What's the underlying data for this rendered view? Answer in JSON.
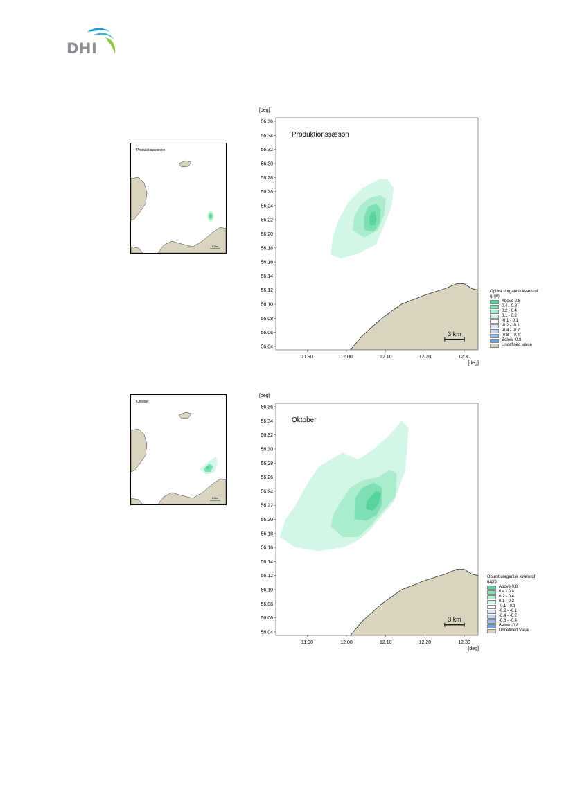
{
  "header": {
    "logo_text": "DHI",
    "logo_colors": [
      "#1a9ad6",
      "#3fb6cc",
      "#8cc63f"
    ]
  },
  "legend": {
    "title": "Opløst uorganisk kvælstof",
    "unit": "(µg/l)",
    "items": [
      {
        "label": "Above  0.8",
        "color": "#58d39c"
      },
      {
        "label": "0.4 -  0.8",
        "color": "#7ce0b4"
      },
      {
        "label": "0.2 -  0.4",
        "color": "#aaeccd"
      },
      {
        "label": "0.1 -  0.2",
        "color": "#d3f6e6"
      },
      {
        "label": "-0.1 -  0.1",
        "color": "#ffffff"
      },
      {
        "label": "-0.2 - -0.1",
        "color": "#dde7f6"
      },
      {
        "label": "-0.4 - -0.2",
        "color": "#c0d3f0"
      },
      {
        "label": "-0.8 - -0.4",
        "color": "#9cbde9"
      },
      {
        "label": "Below -0.8",
        "color": "#6ea2e1"
      },
      {
        "label": "Undefined Value",
        "color": "#d8d4bf"
      }
    ]
  },
  "chart_data": [
    {
      "type": "heatmap",
      "title": "Produktionssæson",
      "overview_title": "Produktionssæson",
      "xlabel": "[deg]",
      "ylabel": "[deg]",
      "xlim": [
        11.82,
        12.335
      ],
      "ylim": [
        56.035,
        56.365
      ],
      "xticks": [
        "11.90",
        "12.00",
        "12.10",
        "12.20",
        "12.30"
      ],
      "yticks": [
        "56.04",
        "56.06",
        "56.08",
        "56.10",
        "56.12",
        "56.14",
        "56.16",
        "56.18",
        "56.20",
        "56.22",
        "56.24",
        "56.26",
        "56.28",
        "56.30",
        "56.32",
        "56.34",
        "56.36"
      ],
      "scale_bar": "3 km",
      "overview_scale_bar": "10 km",
      "contours": [
        {
          "level": "0.1 - 0.2",
          "color": "#d3f6e6",
          "points": [
            [
              11.96,
              56.17
            ],
            [
              11.985,
              56.165
            ],
            [
              12.03,
              56.172
            ],
            [
              12.075,
              56.185
            ],
            [
              12.095,
              56.21
            ],
            [
              12.115,
              56.24
            ],
            [
              12.12,
              56.265
            ],
            [
              12.105,
              56.277
            ],
            [
              12.085,
              56.278
            ],
            [
              12.04,
              56.265
            ],
            [
              12.005,
              56.245
            ],
            [
              11.98,
              56.22
            ],
            [
              11.965,
              56.195
            ]
          ]
        },
        {
          "level": "0.2 - 0.4",
          "color": "#aaeccd",
          "points": [
            [
              12.015,
              56.205
            ],
            [
              12.045,
              56.195
            ],
            [
              12.08,
              56.205
            ],
            [
              12.095,
              56.225
            ],
            [
              12.1,
              56.25
            ],
            [
              12.085,
              56.255
            ],
            [
              12.055,
              56.25
            ],
            [
              12.035,
              56.24
            ],
            [
              12.02,
              56.225
            ]
          ]
        },
        {
          "level": "0.4 - 0.8",
          "color": "#7ce0b4",
          "points": [
            [
              12.045,
              56.205
            ],
            [
              12.07,
              56.203
            ],
            [
              12.085,
              56.215
            ],
            [
              12.087,
              56.235
            ],
            [
              12.075,
              56.243
            ],
            [
              12.055,
              56.238
            ],
            [
              12.045,
              56.225
            ]
          ]
        },
        {
          "level": "Above 0.8",
          "color": "#58d39c",
          "points": [
            [
              12.06,
              56.212
            ],
            [
              12.073,
              56.212
            ],
            [
              12.077,
              56.222
            ],
            [
              12.072,
              56.232
            ],
            [
              12.063,
              56.23
            ],
            [
              12.058,
              56.222
            ]
          ]
        }
      ]
    },
    {
      "type": "heatmap",
      "title": "Oktober",
      "overview_title": "Oktober",
      "xlabel": "[deg]",
      "ylabel": "[deg]",
      "xlim": [
        11.82,
        12.335
      ],
      "ylim": [
        56.035,
        56.365
      ],
      "xticks": [
        "11.90",
        "12.00",
        "12.10",
        "12.20",
        "12.30"
      ],
      "yticks": [
        "56.04",
        "56.06",
        "56.08",
        "56.10",
        "56.12",
        "56.14",
        "56.16",
        "56.18",
        "56.20",
        "56.22",
        "56.24",
        "56.26",
        "56.28",
        "56.30",
        "56.32",
        "56.34",
        "56.36"
      ],
      "scale_bar": "3 km",
      "overview_scale_bar": "10 km",
      "contours": [
        {
          "level": "0.1 - 0.2",
          "color": "#d3f6e6",
          "points": [
            [
              11.83,
              56.175
            ],
            [
              11.87,
              56.16
            ],
            [
              11.93,
              56.155
            ],
            [
              11.99,
              56.16
            ],
            [
              12.03,
              56.17
            ],
            [
              12.06,
              56.185
            ],
            [
              12.09,
              56.205
            ],
            [
              12.12,
              56.225
            ],
            [
              12.15,
              56.27
            ],
            [
              12.158,
              56.33
            ],
            [
              12.14,
              56.34
            ],
            [
              12.11,
              56.32
            ],
            [
              12.07,
              56.3
            ],
            [
              12.03,
              56.285
            ],
            [
              11.99,
              56.295
            ],
            [
              11.96,
              56.285
            ],
            [
              11.93,
              56.275
            ],
            [
              11.9,
              56.25
            ],
            [
              11.87,
              56.22
            ],
            [
              11.845,
              56.2
            ]
          ]
        },
        {
          "level": "0.2 - 0.4",
          "color": "#aaeccd",
          "points": [
            [
              11.96,
              56.19
            ],
            [
              11.99,
              56.175
            ],
            [
              12.03,
              56.175
            ],
            [
              12.06,
              56.19
            ],
            [
              12.09,
              56.21
            ],
            [
              12.125,
              56.232
            ],
            [
              12.128,
              56.265
            ],
            [
              12.11,
              56.27
            ],
            [
              12.08,
              56.26
            ],
            [
              12.04,
              56.255
            ],
            [
              12.01,
              56.245
            ],
            [
              11.985,
              56.225
            ],
            [
              11.965,
              56.205
            ]
          ]
        },
        {
          "level": "0.4 - 0.8",
          "color": "#7ce0b4",
          "points": [
            [
              12.02,
              56.2
            ],
            [
              12.05,
              56.198
            ],
            [
              12.075,
              56.205
            ],
            [
              12.09,
              56.22
            ],
            [
              12.09,
              56.245
            ],
            [
              12.07,
              56.252
            ],
            [
              12.04,
              56.245
            ],
            [
              12.022,
              56.23
            ]
          ]
        },
        {
          "level": "Above 0.8",
          "color": "#58d39c",
          "points": [
            [
              12.05,
              56.215
            ],
            [
              12.067,
              56.212
            ],
            [
              12.082,
              56.222
            ],
            [
              12.088,
              56.237
            ],
            [
              12.076,
              56.241
            ],
            [
              12.062,
              56.232
            ],
            [
              12.052,
              56.226
            ]
          ]
        }
      ]
    }
  ]
}
